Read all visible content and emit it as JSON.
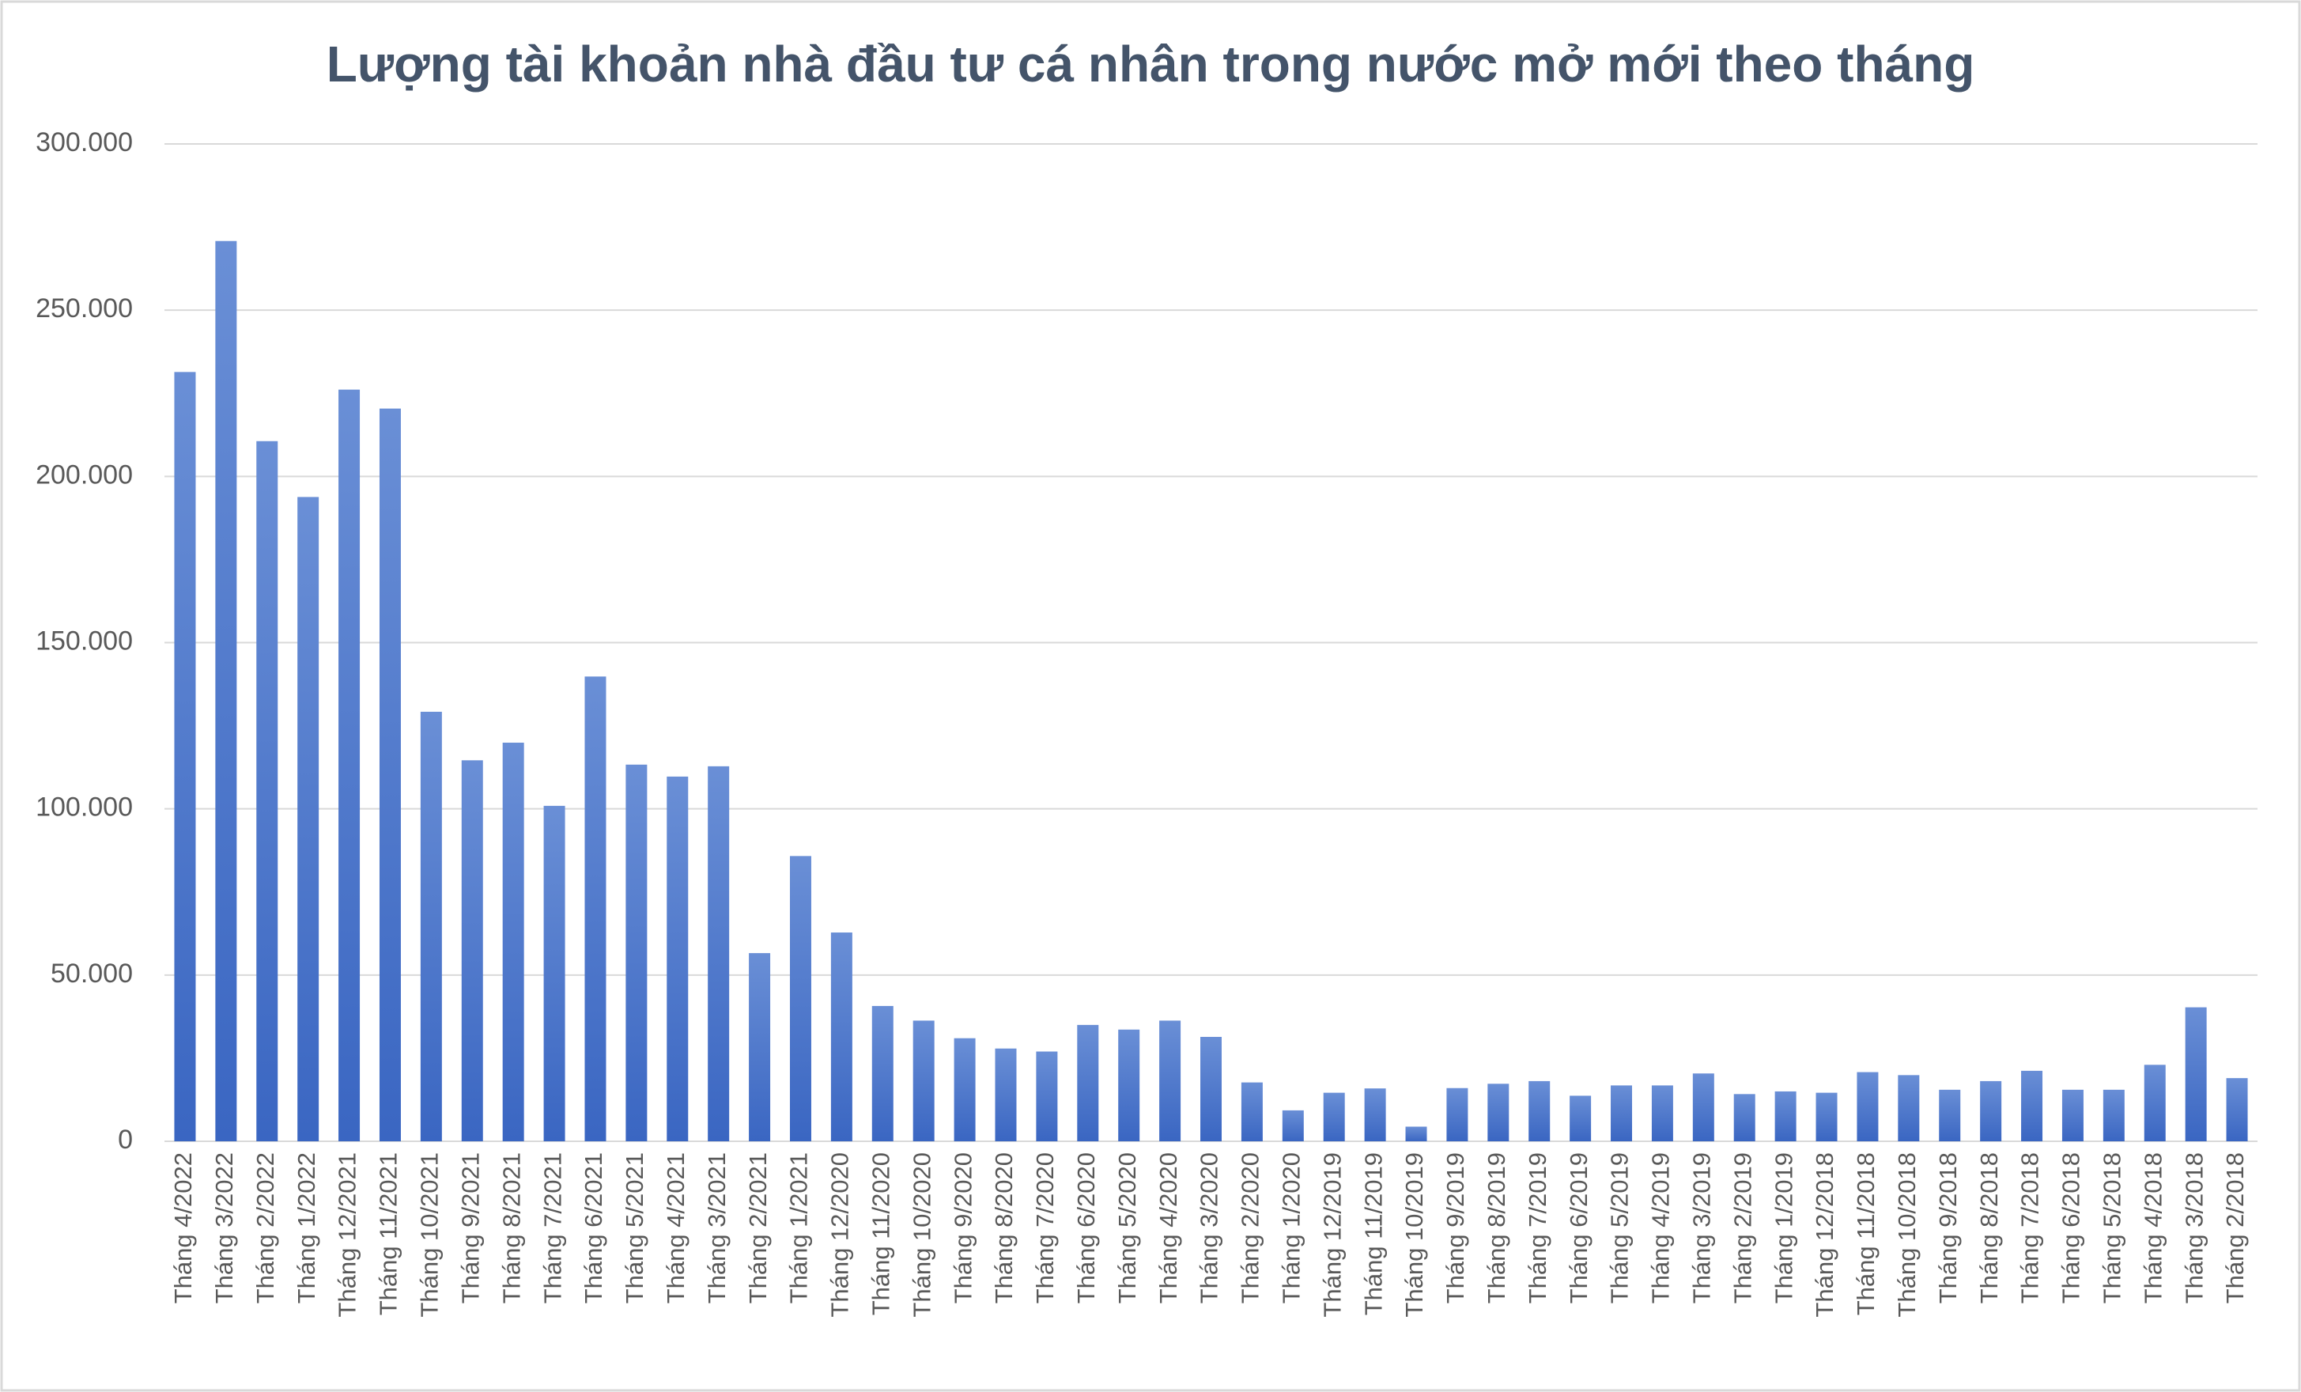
{
  "chart_data": {
    "type": "bar",
    "title": "Lượng tài khoản nhà đầu tư cá nhân trong nước mở mới theo tháng",
    "categories": [
      "Tháng 4/2022",
      "Tháng 3/2022",
      "Tháng 2/2022",
      "Tháng 1/2022",
      "Tháng 12/2021",
      "Tháng 11/2021",
      "Tháng 10/2021",
      "Tháng 9/2021",
      "Tháng 8/2021",
      "Tháng 7/2021",
      "Tháng 6/2021",
      "Tháng 5/2021",
      "Tháng 4/2021",
      "Tháng 3/2021",
      "Tháng 2/2021",
      "Tháng 1/2021",
      "Tháng 12/2020",
      "Tháng 11/2020",
      "Tháng 10/2020",
      "Tháng 9/2020",
      "Tháng 8/2020",
      "Tháng 7/2020",
      "Tháng 6/2020",
      "Tháng 5/2020",
      "Tháng 4/2020",
      "Tháng 3/2020",
      "Tháng 2/2020",
      "Tháng 1/2020",
      "Tháng 12/2019",
      "Tháng 11/2019",
      "Tháng 10/2019",
      "Tháng 9/2019",
      "Tháng 8/2019",
      "Tháng 7/2019",
      "Tháng 6/2019",
      "Tháng 5/2019",
      "Tháng 4/2019",
      "Tháng 3/2019",
      "Tháng 2/2019",
      "Tháng 1/2019",
      "Tháng 12/2018",
      "Tháng 11/2018",
      "Tháng 10/2018",
      "Tháng 9/2018",
      "Tháng 8/2018",
      "Tháng 7/2018",
      "Tháng 6/2018",
      "Tháng 5/2018",
      "Tháng 4/2018",
      "Tháng 3/2018",
      "Tháng 2/2018"
    ],
    "values": [
      231400,
      270800,
      210600,
      193800,
      226100,
      220400,
      129200,
      114600,
      119900,
      100900,
      139800,
      113300,
      109700,
      112800,
      56600,
      85800,
      62800,
      40700,
      36300,
      31000,
      27900,
      27000,
      35000,
      33600,
      36300,
      31400,
      17700,
      9300,
      14600,
      15900,
      4400,
      16000,
      17300,
      18100,
      13700,
      16800,
      16800,
      20400,
      14200,
      15000,
      14600,
      20800,
      19900,
      15500,
      18100,
      21200,
      15500,
      15500,
      23000,
      40300,
      19000
    ],
    "color": "#4a76cc",
    "ylim": [
      0,
      300000
    ],
    "yticks": [
      0,
      {
        "value": 50000,
        "label": "50.000"
      },
      {
        "value": 100000,
        "label": "100.000"
      },
      {
        "value": 150000,
        "label": "150.000"
      },
      {
        "value": 200000,
        "label": "200.000"
      },
      {
        "value": 250000,
        "label": "250.000"
      },
      {
        "value": 300000,
        "label": "300.000"
      }
    ],
    "grid": true
  }
}
